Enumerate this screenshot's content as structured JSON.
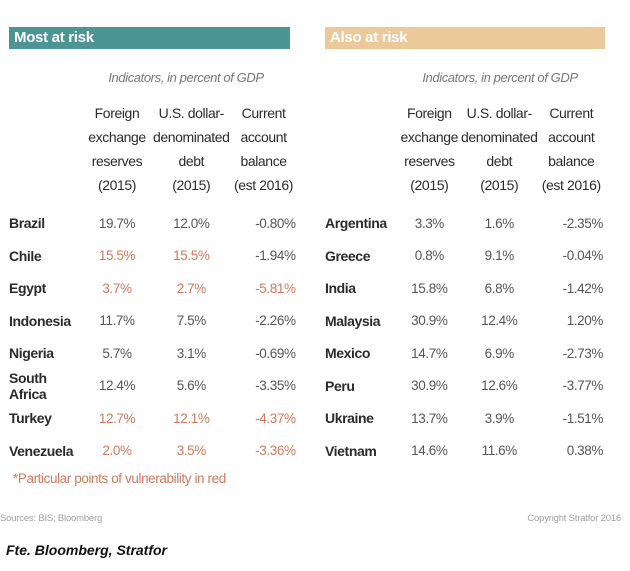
{
  "left_panel": {
    "title": "Most at risk",
    "subtitle": "Indicators, in percent of GDP",
    "headers": [
      "Foreign\nexchange\nreserves\n(2015)",
      "U.S. dollar-\ndenominated\ndebt\n(2015)",
      "Current\naccount\nbalance\n(est 2016)"
    ],
    "rows": [
      {
        "country": "Brazil",
        "reserves": "19.7%",
        "debt": "12.0%",
        "balance": "-0.80%",
        "red": [
          false,
          false,
          false
        ]
      },
      {
        "country": "Chile",
        "reserves": "15.5%",
        "debt": "15.5%",
        "balance": "-1.94%",
        "red": [
          true,
          true,
          false
        ]
      },
      {
        "country": "Egypt",
        "reserves": "3.7%",
        "debt": "2.7%",
        "balance": "-5.81%",
        "red": [
          true,
          true,
          true
        ]
      },
      {
        "country": "Indonesia",
        "reserves": "11.7%",
        "debt": "7.5%",
        "balance": "-2.26%",
        "red": [
          false,
          false,
          false
        ]
      },
      {
        "country": "Nigeria",
        "reserves": "5.7%",
        "debt": "3.1%",
        "balance": "-0.69%",
        "red": [
          false,
          false,
          false
        ]
      },
      {
        "country": "South Africa",
        "reserves": "12.4%",
        "debt": "5.6%",
        "balance": "-3.35%",
        "red": [
          false,
          false,
          false
        ]
      },
      {
        "country": "Turkey",
        "reserves": "12.7%",
        "debt": "12.1%",
        "balance": "-4.37%",
        "red": [
          true,
          true,
          true
        ]
      },
      {
        "country": "Venezuela",
        "reserves": "2.0%",
        "debt": "3.5%",
        "balance": "-3.36%",
        "red": [
          true,
          true,
          true
        ]
      }
    ]
  },
  "right_panel": {
    "title": "Also at risk",
    "subtitle": "Indicators, in percent of GDP",
    "headers": [
      "Foreign\nexchange\nreserves\n(2015)",
      "U.S. dollar-\ndenominated\ndebt\n(2015)",
      "Current\naccount\nbalance\n(est 2016)"
    ],
    "rows": [
      {
        "country": "Argentina",
        "reserves": "3.3%",
        "debt": "1.6%",
        "balance": "-2.35%",
        "red": [
          false,
          false,
          false
        ]
      },
      {
        "country": "Greece",
        "reserves": "0.8%",
        "debt": "9.1%",
        "balance": "-0.04%",
        "red": [
          false,
          false,
          false
        ]
      },
      {
        "country": "India",
        "reserves": "15.8%",
        "debt": "6.8%",
        "balance": "-1.42%",
        "red": [
          false,
          false,
          false
        ]
      },
      {
        "country": "Malaysia",
        "reserves": "30.9%",
        "debt": "12.4%",
        "balance": "1.20%",
        "red": [
          false,
          false,
          false
        ]
      },
      {
        "country": "Mexico",
        "reserves": "14.7%",
        "debt": "6.9%",
        "balance": "-2.73%",
        "red": [
          false,
          false,
          false
        ]
      },
      {
        "country": "Peru",
        "reserves": "30.9%",
        "debt": "12.6%",
        "balance": "-3.77%",
        "red": [
          false,
          false,
          false
        ]
      },
      {
        "country": "Ukraine",
        "reserves": "13.7%",
        "debt": "3.9%",
        "balance": "-1.51%",
        "red": [
          false,
          false,
          false
        ]
      },
      {
        "country": "Vietnam",
        "reserves": "14.6%",
        "debt": "11.6%",
        "balance": "0.38%",
        "red": [
          false,
          false,
          false
        ]
      }
    ]
  },
  "footnote": "*Particular points of vulnerability in red",
  "sources": "Sources: BIS; Bloomberg",
  "copyright": "Copyright Stratfor 2016",
  "caption": "Fte. Bloomberg, Stratfor",
  "colors": {
    "teal": "#4d9595",
    "tan": "#ecc99a",
    "red": "#d4785a"
  }
}
